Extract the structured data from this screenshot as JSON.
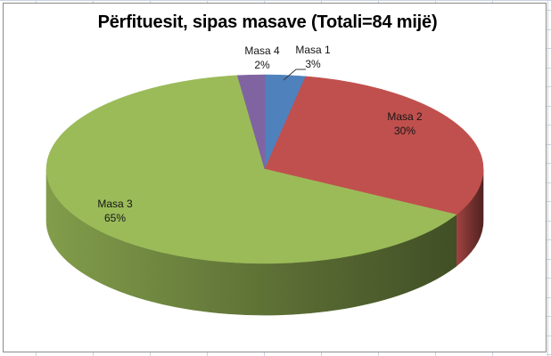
{
  "chart_data": {
    "type": "pie",
    "title": "Përfituesit, sipas masave (Totali=84 mijë)",
    "total_note": "Totali=84 mijë",
    "unit": "percent",
    "effect": "3d",
    "start_angle_deg": 0,
    "direction": "clockwise",
    "legend": "none",
    "slices": [
      {
        "label": "Masa 1",
        "percent": 3,
        "percent_label": "3%",
        "color": "#4f81bd"
      },
      {
        "label": "Masa 2",
        "percent": 30,
        "percent_label": "30%",
        "color": "#c0504d"
      },
      {
        "label": "Masa 3",
        "percent": 65,
        "percent_label": "65%",
        "color": "#9bbb59"
      },
      {
        "label": "Masa 4",
        "percent": 2,
        "percent_label": "2%",
        "color": "#8064a2"
      }
    ]
  }
}
